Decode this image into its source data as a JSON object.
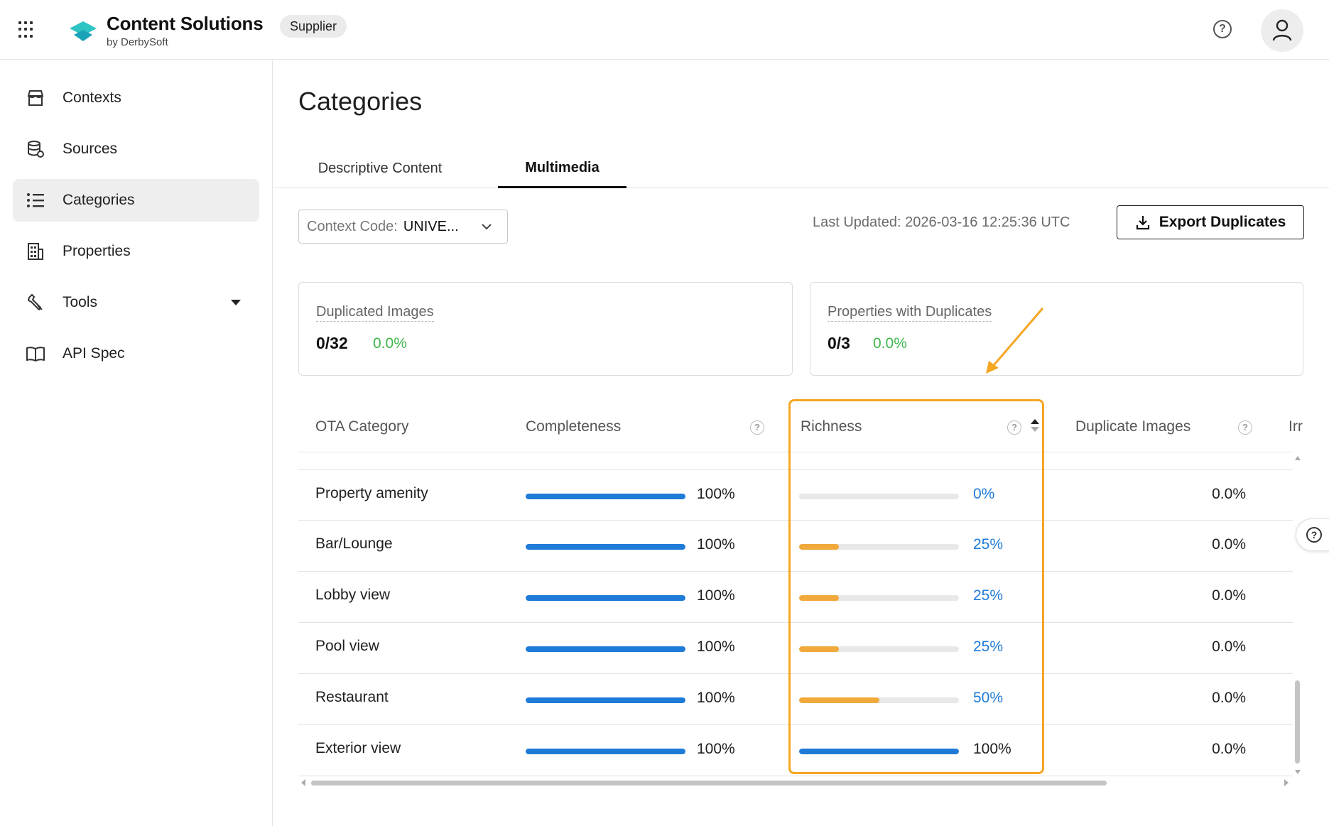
{
  "header": {
    "brand_name": "Content Solutions",
    "brand_sub": "by DerbySoft",
    "role_badge": "Supplier"
  },
  "sidebar": {
    "items": [
      {
        "label": "Contexts",
        "icon": "store-icon"
      },
      {
        "label": "Sources",
        "icon": "database-icon"
      },
      {
        "label": "Categories",
        "icon": "list-icon",
        "active": true
      },
      {
        "label": "Properties",
        "icon": "building-icon"
      },
      {
        "label": "Tools",
        "icon": "wrench-icon"
      },
      {
        "label": "API Spec",
        "icon": "book-icon"
      }
    ]
  },
  "page": {
    "title": "Categories",
    "tabs": [
      {
        "label": "Descriptive Content"
      },
      {
        "label": "Multimedia",
        "active": true
      }
    ],
    "context_select": {
      "label": "Context Code:",
      "value": "UNIVE..."
    },
    "last_updated": "Last Updated: 2026-03-16 12:25:36 UTC",
    "export_button": "Export Duplicates"
  },
  "stats": [
    {
      "title": "Duplicated Images",
      "value": "0/32",
      "pct": "0.0%"
    },
    {
      "title": "Properties with Duplicates",
      "value": "0/3",
      "pct": "0.0%"
    }
  ],
  "table": {
    "columns": [
      "OTA Category",
      "Completeness",
      "Richness",
      "Duplicate Images",
      "Irr"
    ],
    "rows": [
      {
        "category": "Property amenity",
        "completeness": 100,
        "completeness_label": "100%",
        "richness": 0,
        "richness_label": "0%",
        "duplicate": "0.0%"
      },
      {
        "category": "Bar/Lounge",
        "completeness": 100,
        "completeness_label": "100%",
        "richness": 25,
        "richness_label": "25%",
        "duplicate": "0.0%"
      },
      {
        "category": "Lobby view",
        "completeness": 100,
        "completeness_label": "100%",
        "richness": 25,
        "richness_label": "25%",
        "duplicate": "0.0%"
      },
      {
        "category": "Pool view",
        "completeness": 100,
        "completeness_label": "100%",
        "richness": 25,
        "richness_label": "25%",
        "duplicate": "0.0%"
      },
      {
        "category": "Restaurant",
        "completeness": 100,
        "completeness_label": "100%",
        "richness": 50,
        "richness_label": "50%",
        "duplicate": "0.0%"
      },
      {
        "category": "Exterior view",
        "completeness": 100,
        "completeness_label": "100%",
        "richness": 100,
        "richness_label": "100%",
        "duplicate": "0.0%"
      }
    ]
  },
  "colors": {
    "bar_blue": "#1e7bd8",
    "bar_orange": "#f0a93a",
    "highlight": "#f5a623",
    "success_green": "#3fb64a",
    "logo_teal": "#2ec4c4"
  }
}
